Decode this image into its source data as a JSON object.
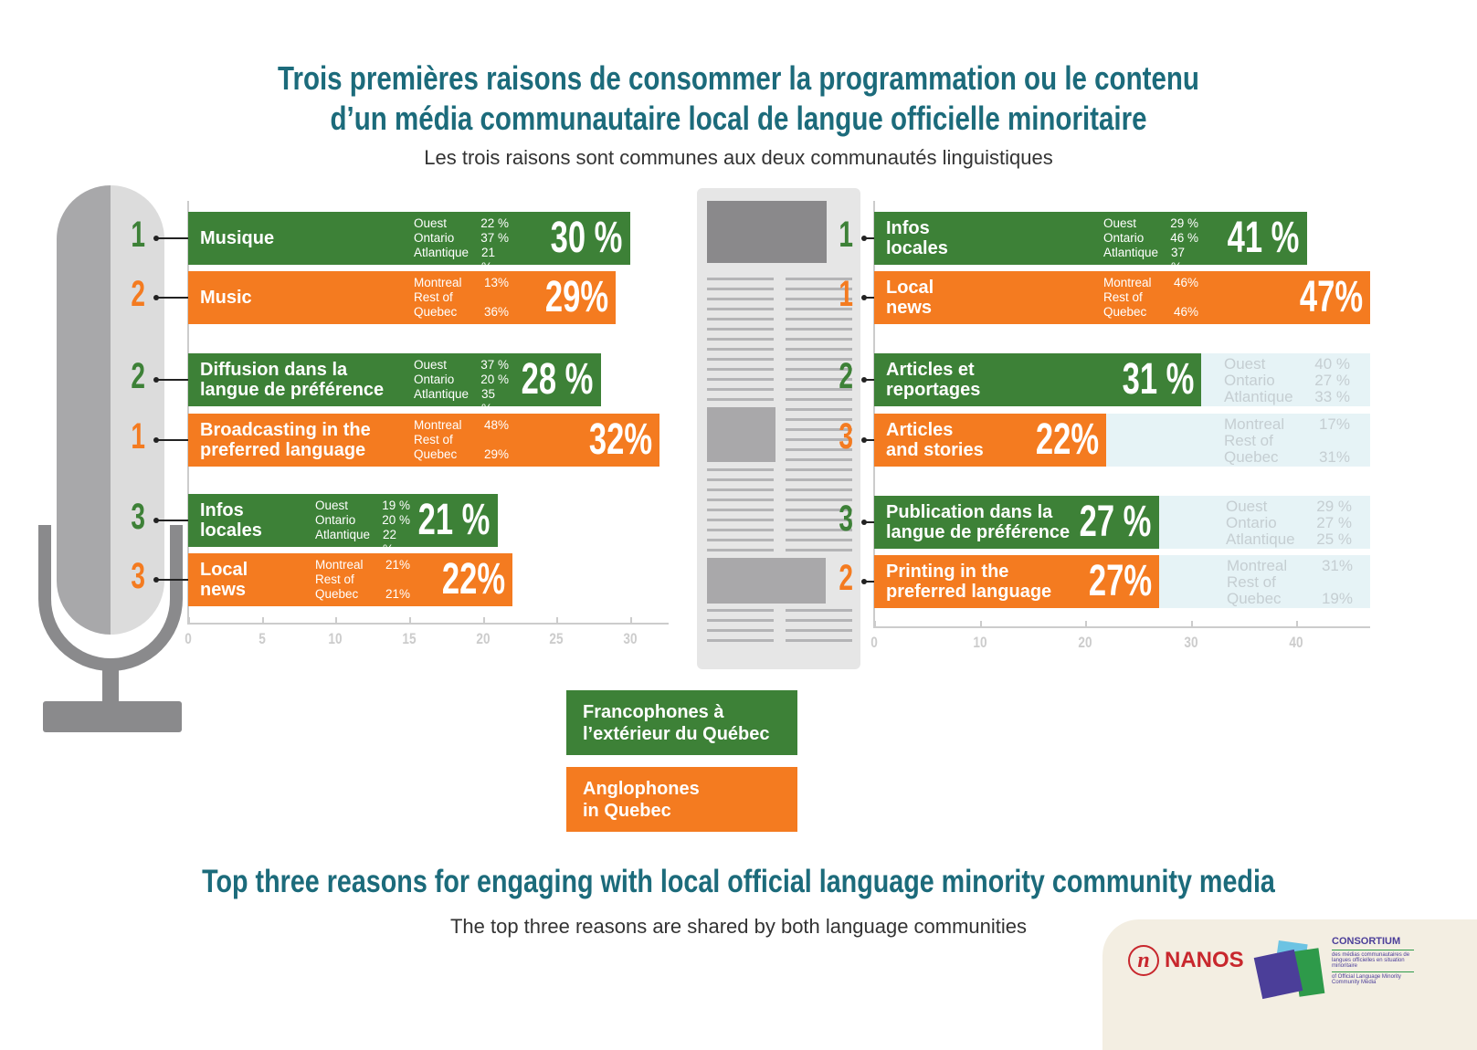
{
  "header": {
    "title_line1": "Trois premières raisons de consommer la programmation ou le contenu",
    "title_line2": "d’un média communautaire local de langue officielle minoritaire",
    "subtitle": "Les trois raisons sont communes aux deux communautés linguistiques"
  },
  "footer": {
    "title": "Top three reasons for engaging with local official language minority community media",
    "subtitle": "The top three reasons are shared by both language communities"
  },
  "legend": {
    "francophone": "Francophones à\nl’extérieur du Québec",
    "anglophone": "Anglophones\nin Quebec"
  },
  "colors": {
    "francophone": "#3d8137",
    "anglophone": "#f47b20",
    "title": "#1c6b7b",
    "panel": "#e6f3f6"
  },
  "logos": {
    "nanos": "NANOS",
    "consortium": "CONSORTIUM",
    "consortium_fr": "des médias communautaires de langues officielles en situation minoritaire",
    "consortium_en": "of Official Language Minority Community Media"
  },
  "chart_data": [
    {
      "type": "bar",
      "orientation": "horizontal",
      "title": "Radio",
      "xlim": [
        0,
        30
      ],
      "xticks": [
        0,
        5,
        10,
        15,
        20,
        25,
        30
      ],
      "rows": [
        {
          "group": "francophone",
          "rank": "1",
          "label": "Musique",
          "value": 30,
          "value_label": "30 %",
          "breakdown": [
            [
              "Ouest",
              "22 %"
            ],
            [
              "Ontario",
              "37 %"
            ],
            [
              "Atlantique",
              "21 %"
            ]
          ]
        },
        {
          "group": "anglophone",
          "rank": "2",
          "label": "Music",
          "value": 29,
          "value_label": "29%",
          "breakdown": [
            [
              "Montreal",
              "13%"
            ],
            [
              "Rest of",
              ""
            ],
            [
              "Quebec",
              "36%"
            ]
          ]
        },
        {
          "group": "francophone",
          "rank": "2",
          "label": "Diffusion dans la\nlangue de préférence",
          "value": 28,
          "value_label": "28 %",
          "breakdown": [
            [
              "Ouest",
              "37 %"
            ],
            [
              "Ontario",
              "20 %"
            ],
            [
              "Atlantique",
              "35 %"
            ]
          ]
        },
        {
          "group": "anglophone",
          "rank": "1",
          "label": "Broadcasting in the\npreferred language",
          "value": 32,
          "value_label": "32%",
          "breakdown": [
            [
              "Montreal",
              "48%"
            ],
            [
              "Rest of",
              ""
            ],
            [
              "Quebec",
              "29%"
            ]
          ]
        },
        {
          "group": "francophone",
          "rank": "3",
          "label": "Infos\nlocales",
          "value": 21,
          "value_label": "21 %",
          "breakdown": [
            [
              "Ouest",
              "19 %"
            ],
            [
              "Ontario",
              "20 %"
            ],
            [
              "Atlantique",
              "22 %"
            ]
          ]
        },
        {
          "group": "anglophone",
          "rank": "3",
          "label": "Local\nnews",
          "value": 22,
          "value_label": "22%",
          "breakdown": [
            [
              "Montreal",
              "21%"
            ],
            [
              "Rest of",
              ""
            ],
            [
              "Quebec",
              "21%"
            ]
          ]
        }
      ]
    },
    {
      "type": "bar",
      "orientation": "horizontal",
      "title": "Print",
      "xlim": [
        0,
        47
      ],
      "xticks": [
        0,
        10,
        20,
        30,
        40
      ],
      "rows": [
        {
          "group": "francophone",
          "rank": "1",
          "label": "Infos\nlocales",
          "value": 41,
          "value_label": "41 %",
          "breakdown": [
            [
              "Ouest",
              "29 %"
            ],
            [
              "Ontario",
              "46 %"
            ],
            [
              "Atlantique",
              "37 %"
            ]
          ]
        },
        {
          "group": "anglophone",
          "rank": "1",
          "label": "Local\nnews",
          "value": 47,
          "value_label": "47%",
          "breakdown": [
            [
              "Montreal",
              "46%"
            ],
            [
              "Rest of",
              ""
            ],
            [
              "Quebec",
              "46%"
            ]
          ]
        },
        {
          "group": "francophone",
          "rank": "2",
          "label": "Articles et\nreportages",
          "value": 31,
          "value_label": "31 %",
          "breakdown": [
            [
              "Ouest",
              "40 %"
            ],
            [
              "Ontario",
              "27 %"
            ],
            [
              "Atlantique",
              "33 %"
            ]
          ]
        },
        {
          "group": "anglophone",
          "rank": "3",
          "label": "Articles\nand stories",
          "value": 22,
          "value_label": "22%",
          "breakdown": [
            [
              "Montreal",
              "17%"
            ],
            [
              "Rest of",
              ""
            ],
            [
              "Quebec",
              "31%"
            ]
          ]
        },
        {
          "group": "francophone",
          "rank": "3",
          "label": "Publication dans la\nlangue de préférence",
          "value": 27,
          "value_label": "27 %",
          "breakdown": [
            [
              "Ouest",
              "29 %"
            ],
            [
              "Ontario",
              "27 %"
            ],
            [
              "Atlantique",
              "25 %"
            ]
          ]
        },
        {
          "group": "anglophone",
          "rank": "2",
          "label": "Printing in the\npreferred language",
          "value": 27,
          "value_label": "27%",
          "breakdown": [
            [
              "Montreal",
              "31%"
            ],
            [
              "Rest of",
              ""
            ],
            [
              "Quebec",
              "19%"
            ]
          ]
        }
      ]
    }
  ]
}
